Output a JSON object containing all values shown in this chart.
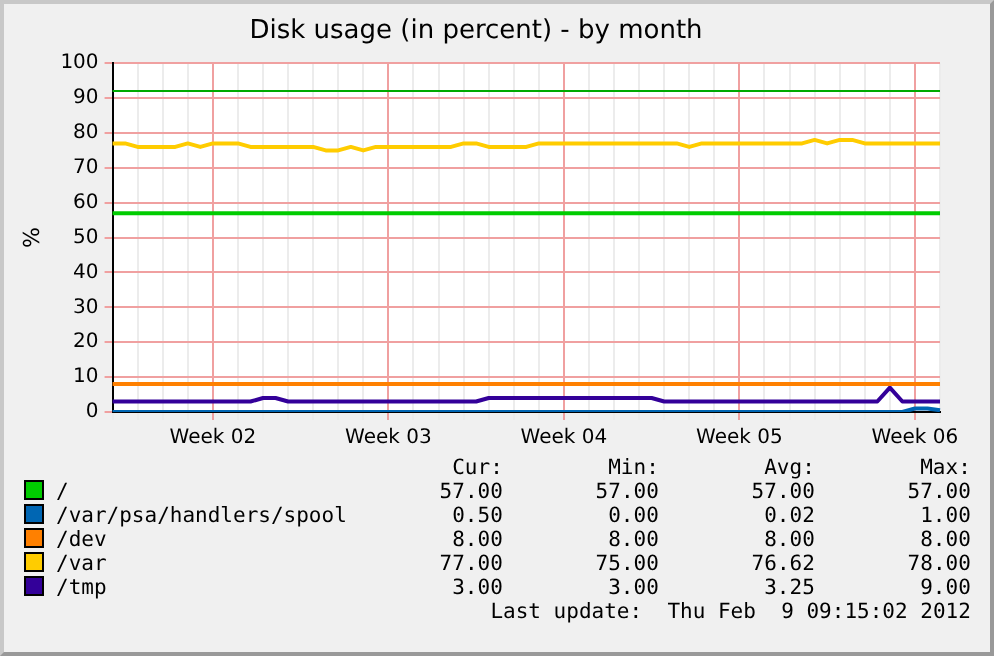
{
  "chart_data": {
    "type": "line",
    "title": "Disk usage (in percent) - by month",
    "ylabel": "%",
    "categories": [
      null,
      null,
      null,
      null,
      null,
      null,
      null,
      null,
      "Week 02",
      null,
      null,
      null,
      null,
      null,
      null,
      null,
      null,
      null,
      null,
      null,
      null,
      null,
      "Week 03",
      null,
      null,
      null,
      null,
      null,
      null,
      null,
      null,
      null,
      null,
      null,
      null,
      null,
      "Week 04",
      null,
      null,
      null,
      null,
      null,
      null,
      null,
      null,
      null,
      null,
      null,
      null,
      null,
      "Week 05",
      null,
      null,
      null,
      null,
      null,
      null,
      null,
      null,
      null,
      null,
      null,
      null,
      null,
      "Week 06",
      null,
      null
    ],
    "ylim": [
      0,
      100
    ],
    "yticks": [
      0,
      10,
      20,
      30,
      40,
      50,
      60,
      70,
      80,
      90,
      100
    ],
    "grid": true,
    "legend": "bottom",
    "marker": "none",
    "line_style": "solid",
    "ref_lines": [
      {
        "axis": "y",
        "value": 92,
        "color": "#00aa00"
      }
    ],
    "series": [
      {
        "name": "/",
        "color": "#00cc00",
        "values": [
          57,
          57,
          57,
          57,
          57,
          57,
          57,
          57,
          57,
          57,
          57,
          57,
          57,
          57,
          57,
          57,
          57,
          57,
          57,
          57,
          57,
          57,
          57,
          57,
          57,
          57,
          57,
          57,
          57,
          57,
          57,
          57,
          57,
          57,
          57,
          57,
          57,
          57,
          57,
          57,
          57,
          57,
          57,
          57,
          57,
          57,
          57,
          57,
          57,
          57,
          57,
          57,
          57,
          57,
          57,
          57,
          57,
          57,
          57,
          57,
          57,
          57,
          57,
          57,
          57,
          57,
          57
        ]
      },
      {
        "name": "/var/psa/handlers/spool",
        "color": "#0066b3",
        "values": [
          0,
          0,
          0,
          0,
          0,
          0,
          0,
          0,
          0,
          0,
          0,
          0,
          0,
          0,
          0,
          0,
          0,
          0,
          0,
          0,
          0,
          0,
          0,
          0,
          0,
          0,
          0,
          0,
          0,
          0,
          0,
          0,
          0,
          0,
          0,
          0,
          0,
          0,
          0,
          0,
          0,
          0,
          0,
          0,
          0,
          0,
          0,
          0,
          0,
          0,
          0,
          0,
          0,
          0,
          0,
          0,
          0,
          0,
          0,
          0,
          0,
          0,
          0,
          0,
          1,
          1,
          0.5
        ]
      },
      {
        "name": "/dev",
        "color": "#ff8000",
        "values": [
          8,
          8,
          8,
          8,
          8,
          8,
          8,
          8,
          8,
          8,
          8,
          8,
          8,
          8,
          8,
          8,
          8,
          8,
          8,
          8,
          8,
          8,
          8,
          8,
          8,
          8,
          8,
          8,
          8,
          8,
          8,
          8,
          8,
          8,
          8,
          8,
          8,
          8,
          8,
          8,
          8,
          8,
          8,
          8,
          8,
          8,
          8,
          8,
          8,
          8,
          8,
          8,
          8,
          8,
          8,
          8,
          8,
          8,
          8,
          8,
          8,
          8,
          8,
          8,
          8,
          8,
          8
        ]
      },
      {
        "name": "/var",
        "color": "#ffcc00",
        "values": [
          77,
          77,
          76,
          76,
          76,
          76,
          77,
          76,
          77,
          77,
          77,
          76,
          76,
          76,
          76,
          76,
          76,
          75,
          75,
          76,
          75,
          76,
          76,
          76,
          76,
          76,
          76,
          76,
          77,
          77,
          76,
          76,
          76,
          76,
          77,
          77,
          77,
          77,
          77,
          77,
          77,
          77,
          77,
          77,
          77,
          77,
          76,
          77,
          77,
          77,
          77,
          77,
          77,
          77,
          77,
          77,
          78,
          77,
          78,
          78,
          77,
          77,
          77,
          77,
          77,
          77,
          77
        ]
      },
      {
        "name": "/tmp",
        "color": "#330099",
        "values": [
          3,
          3,
          3,
          3,
          3,
          3,
          3,
          3,
          3,
          3,
          3,
          3,
          4,
          4,
          3,
          3,
          3,
          3,
          3,
          3,
          3,
          3,
          3,
          3,
          3,
          3,
          3,
          3,
          3,
          3,
          4,
          4,
          4,
          4,
          4,
          4,
          4,
          4,
          4,
          4,
          4,
          4,
          4,
          4,
          3,
          3,
          3,
          3,
          3,
          3,
          3,
          3,
          3,
          3,
          3,
          3,
          3,
          3,
          3,
          3,
          3,
          3,
          7,
          3,
          3,
          3,
          3
        ]
      }
    ],
    "annotations": [
      "Cur:",
      "Min:",
      "Avg:",
      "Max:",
      "57.00",
      "57.00",
      "57.00",
      "57.00",
      "0.50",
      "0.00",
      "0.02",
      "1.00",
      "8.00",
      "8.00",
      "8.00",
      "8.00",
      "77.00",
      "75.00",
      "76.62",
      "78.00",
      "3.00",
      "3.00",
      "3.25",
      "9.00",
      "Last update:  Thu Feb  9 09:15:02 2012"
    ]
  }
}
